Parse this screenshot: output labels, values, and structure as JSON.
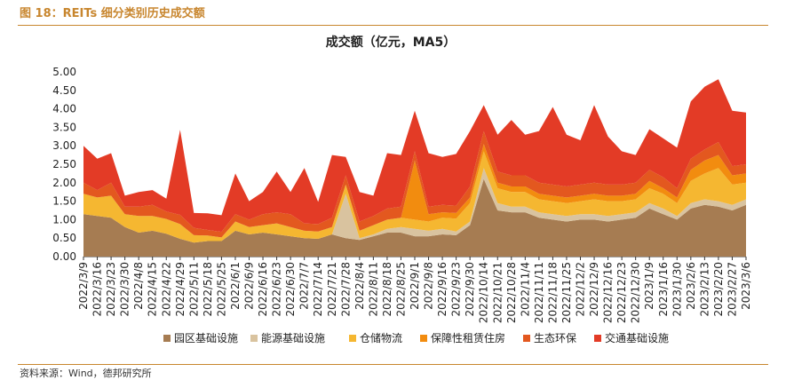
{
  "header": {
    "figure_title": "图 18：REITs 细分类别历史成交额",
    "source": "资料来源：Wind，德邦研究所"
  },
  "chart_data": {
    "type": "area",
    "stacked": true,
    "title": "成交额（亿元，MA5）",
    "xlabel": "",
    "ylabel": "",
    "ylim": [
      0,
      5
    ],
    "yticks": [
      "0.00",
      "0.50",
      "1.00",
      "1.50",
      "2.00",
      "2.50",
      "3.00",
      "3.50",
      "4.00",
      "4.50",
      "5.00"
    ],
    "categories": [
      "2022/3/9",
      "2022/3/16",
      "2022/3/23",
      "2022/3/30",
      "2022/4/8",
      "2022/4/15",
      "2022/4/22",
      "2022/4/29",
      "2022/5/11",
      "2022/5/18",
      "2022/5/25",
      "2022/6/1",
      "2022/6/9",
      "2022/6/16",
      "2022/6/23",
      "2022/6/30",
      "2022/7/7",
      "2022/7/14",
      "2022/7/21",
      "2022/7/28",
      "2022/8/4",
      "2022/8/11",
      "2022/8/18",
      "2022/8/25",
      "2022/9/1",
      "2022/9/8",
      "2022/9/16",
      "2022/9/23",
      "2022/9/30",
      "2022/10/14",
      "2022/10/21",
      "2022/10/28",
      "2022/11/4",
      "2022/11/11",
      "2022/11/18",
      "2022/11/25",
      "2022/12/2",
      "2022/12/9",
      "2022/12/16",
      "2022/12/23",
      "2022/12/30",
      "2023/1/9",
      "2023/1/16",
      "2023/1/30",
      "2023/2/6",
      "2023/2/13",
      "2023/2/20",
      "2023/2/27",
      "2023/3/6"
    ],
    "legend_position": "bottom",
    "colors": {
      "园区基础设施": "#a67c52",
      "能源基础设施": "#d9c39f",
      "仓储物流": "#f5b731",
      "保障性租赁住房": "#f28c0f",
      "生态环保": "#e3581f",
      "交通基础设施": "#e33b26"
    },
    "series": [
      {
        "name": "园区基础设施",
        "values": [
          1.15,
          1.1,
          1.05,
          0.8,
          0.65,
          0.7,
          0.62,
          0.48,
          0.38,
          0.42,
          0.42,
          0.7,
          0.6,
          0.65,
          0.6,
          0.55,
          0.5,
          0.48,
          0.6,
          0.5,
          0.45,
          0.55,
          0.65,
          0.65,
          0.55,
          0.55,
          0.6,
          0.58,
          0.85,
          2.1,
          1.25,
          1.2,
          1.2,
          1.05,
          1.0,
          0.95,
          1.0,
          1.0,
          0.95,
          1.0,
          1.05,
          1.3,
          1.15,
          1.0,
          1.3,
          1.4,
          1.35,
          1.25,
          1.4
        ]
      },
      {
        "name": "能源基础设施",
        "values": [
          0.0,
          0.0,
          0.0,
          0.0,
          0.0,
          0.0,
          0.0,
          0.0,
          0.0,
          0.0,
          0.0,
          0.0,
          0.0,
          0.0,
          0.0,
          0.0,
          0.0,
          0.0,
          0.0,
          1.2,
          0.05,
          0.05,
          0.1,
          0.15,
          0.2,
          0.15,
          0.15,
          0.1,
          0.1,
          0.3,
          0.2,
          0.15,
          0.15,
          0.15,
          0.15,
          0.15,
          0.15,
          0.15,
          0.15,
          0.15,
          0.15,
          0.15,
          0.15,
          0.1,
          0.15,
          0.15,
          0.15,
          0.15,
          0.15
        ]
      },
      {
        "name": "仓储物流",
        "values": [
          0.55,
          0.5,
          0.6,
          0.35,
          0.45,
          0.4,
          0.4,
          0.4,
          0.2,
          0.15,
          0.1,
          0.25,
          0.2,
          0.2,
          0.3,
          0.25,
          0.2,
          0.2,
          0.2,
          0.25,
          0.2,
          0.25,
          0.25,
          0.25,
          0.25,
          0.25,
          0.3,
          0.35,
          0.5,
          0.45,
          0.4,
          0.4,
          0.4,
          0.35,
          0.35,
          0.35,
          0.35,
          0.4,
          0.4,
          0.35,
          0.35,
          0.4,
          0.4,
          0.35,
          0.6,
          0.7,
          0.9,
          0.55,
          0.45
        ]
      },
      {
        "name": "保障性租赁住房",
        "values": [
          0.0,
          0.0,
          0.0,
          0.0,
          0.0,
          0.0,
          0.0,
          0.0,
          0.0,
          0.0,
          0.0,
          0.0,
          0.0,
          0.0,
          0.0,
          0.0,
          0.0,
          0.0,
          0.0,
          0.0,
          0.0,
          0.0,
          0.0,
          0.0,
          1.6,
          0.2,
          0.15,
          0.15,
          0.15,
          0.2,
          0.15,
          0.15,
          0.15,
          0.15,
          0.15,
          0.15,
          0.15,
          0.15,
          0.15,
          0.15,
          0.15,
          0.2,
          0.15,
          0.15,
          0.3,
          0.35,
          0.35,
          0.25,
          0.25
        ]
      },
      {
        "name": "生态环保",
        "values": [
          0.3,
          0.2,
          0.35,
          0.2,
          0.25,
          0.3,
          0.2,
          0.25,
          0.2,
          0.15,
          0.15,
          0.2,
          0.2,
          0.3,
          0.3,
          0.35,
          0.2,
          0.2,
          0.25,
          0.25,
          0.25,
          0.25,
          0.3,
          0.3,
          0.25,
          0.2,
          0.2,
          0.2,
          0.3,
          0.35,
          0.3,
          0.3,
          0.3,
          0.3,
          0.3,
          0.3,
          0.3,
          0.3,
          0.3,
          0.3,
          0.3,
          0.3,
          0.3,
          0.25,
          0.3,
          0.3,
          0.35,
          0.25,
          0.25
        ]
      },
      {
        "name": "交通基础设施",
        "values": [
          1.0,
          0.85,
          0.8,
          0.3,
          0.4,
          0.4,
          0.35,
          2.3,
          0.4,
          0.45,
          0.45,
          1.1,
          0.5,
          0.6,
          1.1,
          0.6,
          1.5,
          0.6,
          1.7,
          0.5,
          0.8,
          0.55,
          1.5,
          1.4,
          1.1,
          1.45,
          1.3,
          1.4,
          1.5,
          0.7,
          1.0,
          1.5,
          1.1,
          1.4,
          2.1,
          1.4,
          1.2,
          2.1,
          1.3,
          0.9,
          0.75,
          1.1,
          1.05,
          1.1,
          1.55,
          1.7,
          1.7,
          1.5,
          1.4
        ]
      }
    ]
  }
}
